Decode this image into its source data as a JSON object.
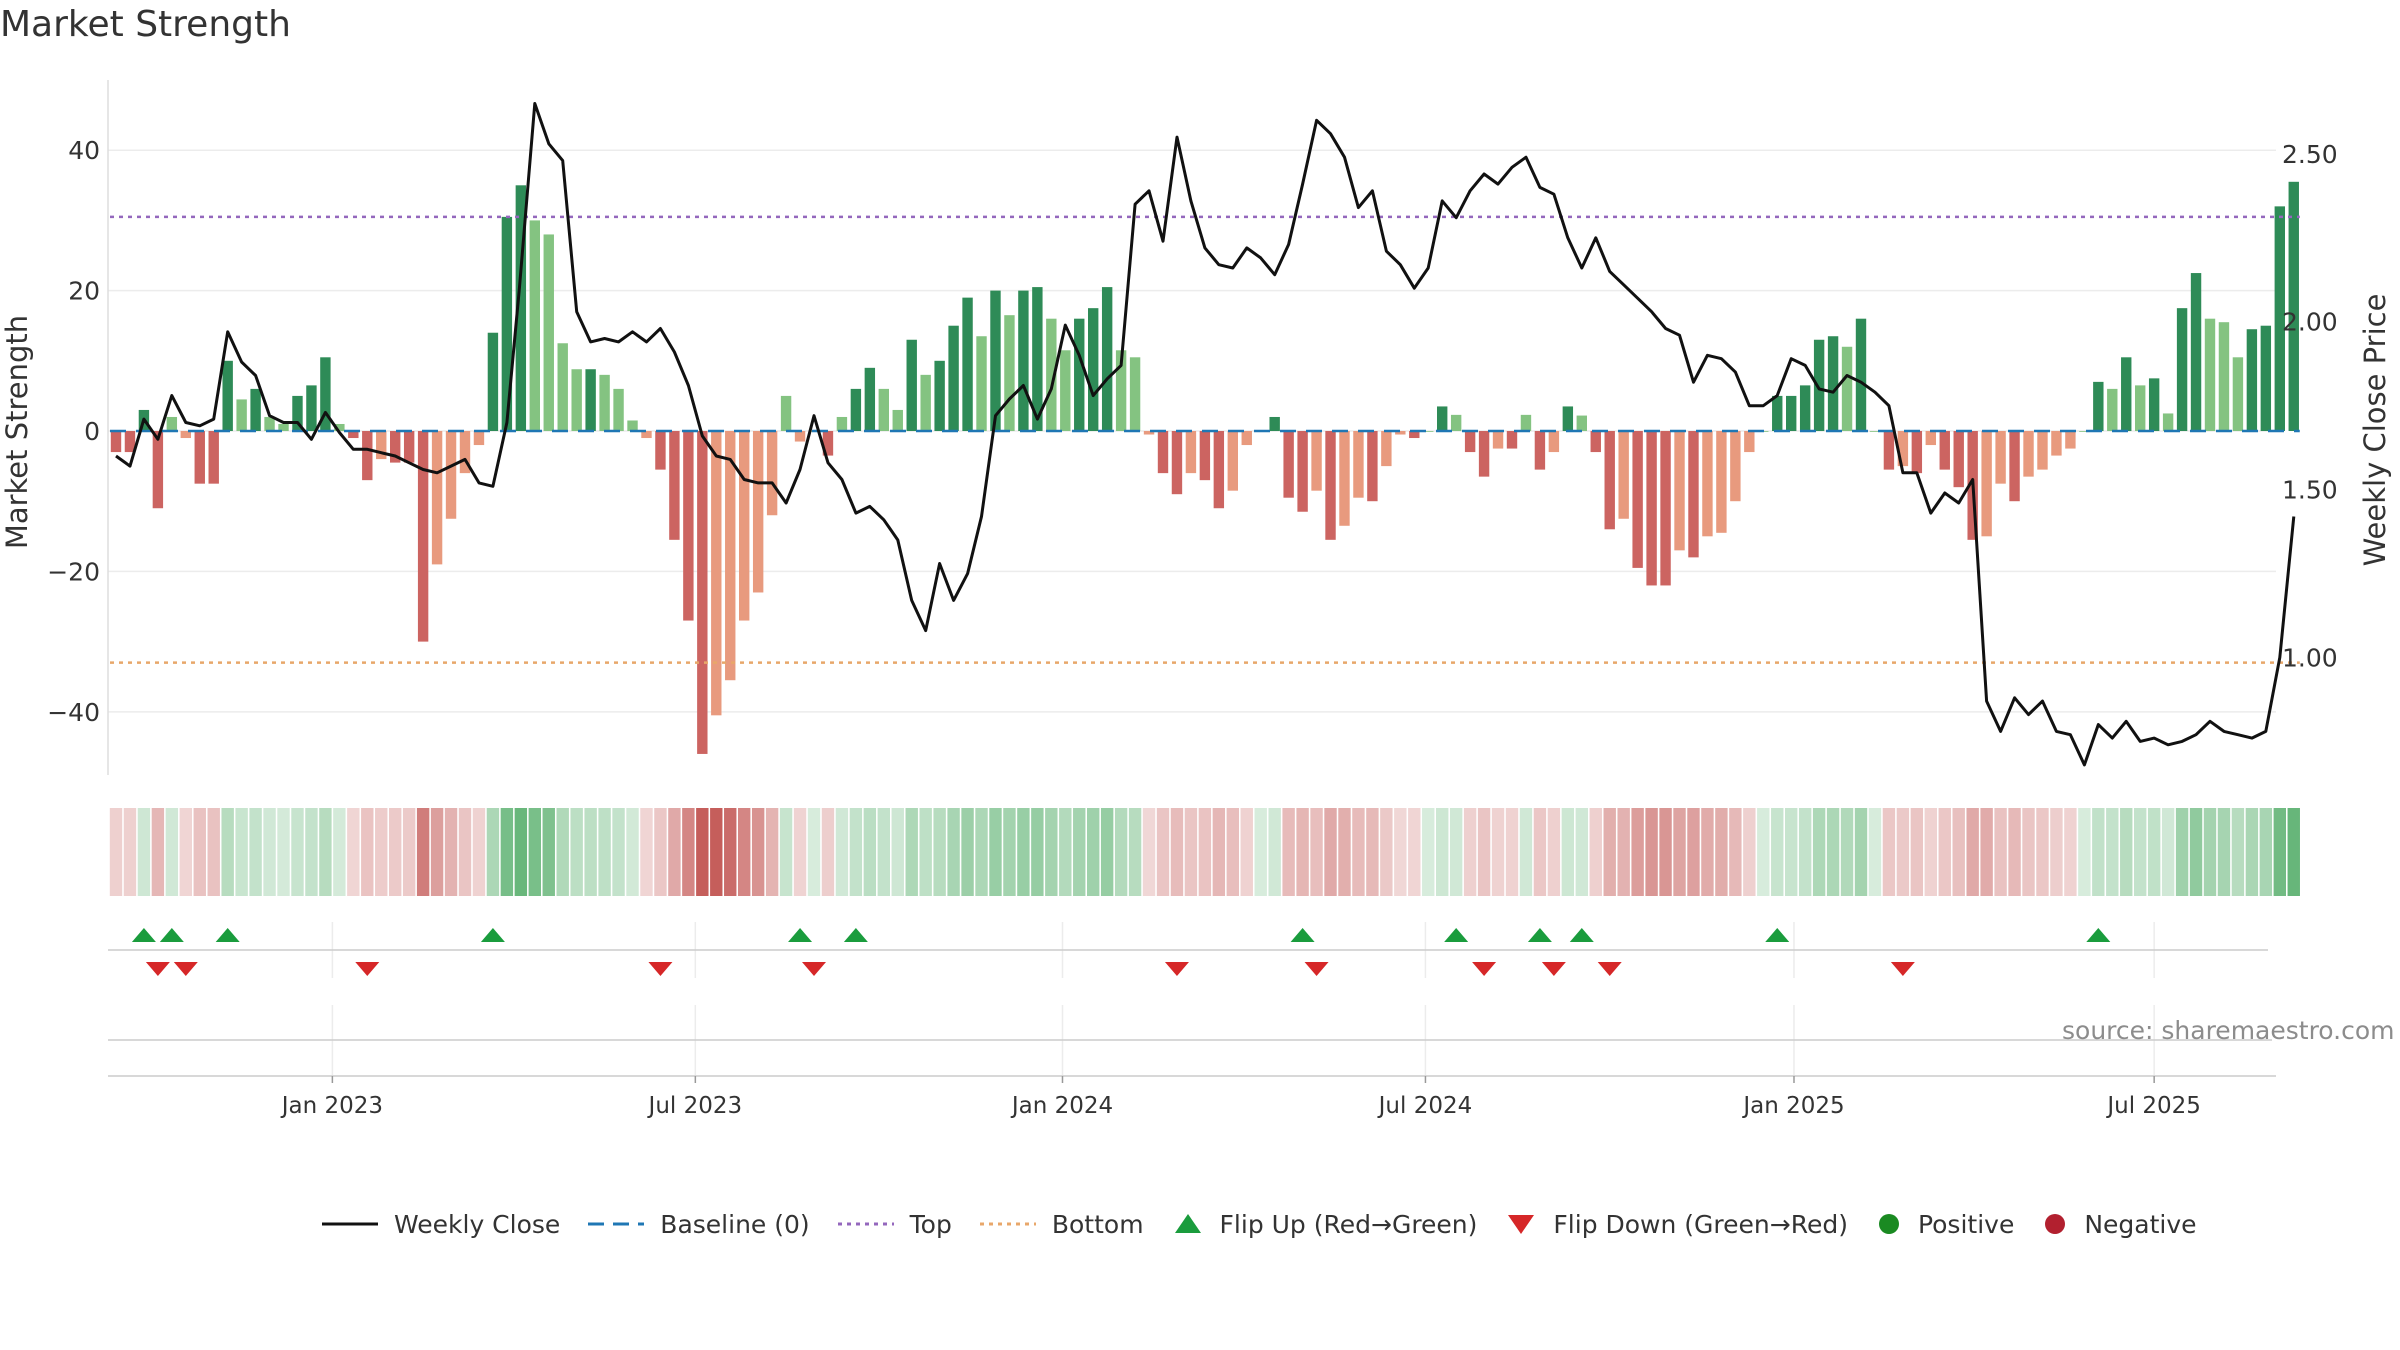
{
  "page": {
    "title": "Market Strength",
    "source": "source: sharemaestro.com"
  },
  "chart_data": {
    "type": "bar",
    "title": "Market Strength",
    "ylabel": "Market Strength",
    "y2label": "Weekly Close Price",
    "ylim": [
      -49,
      50
    ],
    "y2lim": [
      0.65,
      2.72
    ],
    "yticks": [
      {
        "v": 40,
        "t": "40"
      },
      {
        "v": 20,
        "t": "20"
      },
      {
        "v": 0,
        "t": "0"
      },
      {
        "v": -20,
        "t": "−20"
      },
      {
        "v": -40,
        "t": "−40"
      }
    ],
    "y2ticks": [
      {
        "v": 2.5,
        "t": "2.50"
      },
      {
        "v": 2.0,
        "t": "2.00"
      },
      {
        "v": 1.5,
        "t": "1.50"
      },
      {
        "v": 1.0,
        "t": "1.00"
      }
    ],
    "xticks": [
      {
        "w": 15.5,
        "t": "Jan 2023"
      },
      {
        "w": 41.5,
        "t": "Jul 2023"
      },
      {
        "w": 67.8,
        "t": "Jan 2024"
      },
      {
        "w": 93.8,
        "t": "Jul 2024"
      },
      {
        "w": 120.2,
        "t": "Jan 2025"
      },
      {
        "w": 146.0,
        "t": "Jul 2025"
      }
    ],
    "top_threshold": 30.5,
    "bottom_threshold": -33,
    "strength": [
      -3,
      -3,
      3,
      -11,
      2,
      -1,
      -7.5,
      -7.5,
      10,
      4.5,
      6,
      2,
      1,
      5,
      6.5,
      10.5,
      1,
      -1,
      -7,
      -4,
      -4.5,
      -4.5,
      -30,
      -19,
      -12.5,
      -6,
      -2,
      14,
      30.5,
      35,
      30,
      28,
      12.5,
      8.8,
      8.8,
      8,
      6,
      1.5,
      -1,
      -5.5,
      -15.5,
      -27,
      -46,
      -40.5,
      -35.5,
      -27,
      -23,
      -12,
      5,
      -1.5,
      0,
      -3.5,
      2,
      6,
      9,
      6,
      3,
      13,
      8,
      10,
      15,
      19,
      13.5,
      20,
      16.5,
      20,
      20.5,
      16,
      11.5,
      16,
      17.5,
      20.5,
      11.5,
      10.5,
      -0.5,
      -6,
      -9,
      -6,
      -7,
      -11,
      -8.5,
      -2,
      0,
      2,
      -9.5,
      -11.5,
      -8.5,
      -15.5,
      -13.5,
      -9.5,
      -10,
      -5,
      -0.5,
      -1,
      0,
      3.5,
      2.3,
      -3,
      -6.5,
      -2.5,
      -2.5,
      2.3,
      -5.5,
      -3,
      3.5,
      2.2,
      -3,
      -14,
      -12.5,
      -19.5,
      -22,
      -22,
      -17,
      -18,
      -15,
      -14.5,
      -10,
      -3,
      0,
      5,
      5,
      6.5,
      13,
      13.5,
      12,
      16,
      0,
      -5.5,
      -5,
      -6,
      -2,
      -5.5,
      -8,
      -15.5,
      -15,
      -7.5,
      -10,
      -6.5,
      -5.5,
      -3.5,
      -2.5,
      0,
      7,
      6,
      10.5,
      6.5,
      7.5,
      2.5,
      17.5,
      22.5,
      16,
      15.5,
      10.5,
      14.5,
      15,
      32,
      35.5
    ],
    "close_series": [
      {
        "w": 0,
        "v": 1.6
      },
      {
        "w": 1,
        "v": 1.57
      },
      {
        "w": 2,
        "v": 1.71
      },
      {
        "w": 3,
        "v": 1.65
      },
      {
        "w": 4,
        "v": 1.78
      },
      {
        "w": 5,
        "v": 1.7
      },
      {
        "w": 6,
        "v": 1.69
      },
      {
        "w": 7,
        "v": 1.71
      },
      {
        "w": 8,
        "v": 1.97
      },
      {
        "w": 9,
        "v": 1.88
      },
      {
        "w": 10,
        "v": 1.84
      },
      {
        "w": 11,
        "v": 1.72
      },
      {
        "w": 12,
        "v": 1.7
      },
      {
        "w": 13,
        "v": 1.7
      },
      {
        "w": 14,
        "v": 1.65
      },
      {
        "w": 15,
        "v": 1.73
      },
      {
        "w": 16,
        "v": 1.67
      },
      {
        "w": 17,
        "v": 1.62
      },
      {
        "w": 18,
        "v": 1.62
      },
      {
        "w": 19,
        "v": 1.61
      },
      {
        "w": 20,
        "v": 1.6
      },
      {
        "w": 21,
        "v": 1.58
      },
      {
        "w": 22,
        "v": 1.56
      },
      {
        "w": 23,
        "v": 1.55
      },
      {
        "w": 24,
        "v": 1.57
      },
      {
        "w": 25,
        "v": 1.59
      },
      {
        "w": 26,
        "v": 1.52
      },
      {
        "w": 27,
        "v": 1.51
      },
      {
        "w": 28,
        "v": 1.7
      },
      {
        "w": 28.9,
        "v": 2.1
      },
      {
        "w": 30,
        "v": 2.65
      },
      {
        "w": 31,
        "v": 2.53
      },
      {
        "w": 32,
        "v": 2.48
      },
      {
        "w": 33,
        "v": 2.03
      },
      {
        "w": 34,
        "v": 1.94
      },
      {
        "w": 35,
        "v": 1.95
      },
      {
        "w": 36,
        "v": 1.94
      },
      {
        "w": 37,
        "v": 1.97
      },
      {
        "w": 38,
        "v": 1.94
      },
      {
        "w": 39,
        "v": 1.98
      },
      {
        "w": 40,
        "v": 1.91
      },
      {
        "w": 41,
        "v": 1.81
      },
      {
        "w": 42,
        "v": 1.66
      },
      {
        "w": 43,
        "v": 1.6
      },
      {
        "w": 44,
        "v": 1.59
      },
      {
        "w": 45,
        "v": 1.53
      },
      {
        "w": 46,
        "v": 1.52
      },
      {
        "w": 47,
        "v": 1.52
      },
      {
        "w": 48,
        "v": 1.46
      },
      {
        "w": 49,
        "v": 1.56
      },
      {
        "w": 50,
        "v": 1.72
      },
      {
        "w": 51,
        "v": 1.58
      },
      {
        "w": 52,
        "v": 1.53
      },
      {
        "w": 53,
        "v": 1.43
      },
      {
        "w": 54,
        "v": 1.45
      },
      {
        "w": 55,
        "v": 1.41
      },
      {
        "w": 56,
        "v": 1.35
      },
      {
        "w": 57,
        "v": 1.17
      },
      {
        "w": 58,
        "v": 1.08
      },
      {
        "w": 59,
        "v": 1.28
      },
      {
        "w": 60,
        "v": 1.17
      },
      {
        "w": 61,
        "v": 1.25
      },
      {
        "w": 62,
        "v": 1.42
      },
      {
        "w": 63,
        "v": 1.72
      },
      {
        "w": 64,
        "v": 1.77
      },
      {
        "w": 65,
        "v": 1.81
      },
      {
        "w": 66,
        "v": 1.71
      },
      {
        "w": 67,
        "v": 1.8
      },
      {
        "w": 68,
        "v": 1.99
      },
      {
        "w": 69,
        "v": 1.9
      },
      {
        "w": 70,
        "v": 1.78
      },
      {
        "w": 71,
        "v": 1.83
      },
      {
        "w": 72,
        "v": 1.87
      },
      {
        "w": 73,
        "v": 2.35
      },
      {
        "w": 74,
        "v": 2.39
      },
      {
        "w": 75,
        "v": 2.24
      },
      {
        "w": 76,
        "v": 2.55
      },
      {
        "w": 77,
        "v": 2.36
      },
      {
        "w": 78,
        "v": 2.22
      },
      {
        "w": 79,
        "v": 2.17
      },
      {
        "w": 80,
        "v": 2.16
      },
      {
        "w": 81,
        "v": 2.22
      },
      {
        "w": 82,
        "v": 2.19
      },
      {
        "w": 83,
        "v": 2.14
      },
      {
        "w": 84,
        "v": 2.23
      },
      {
        "w": 85,
        "v": 2.41
      },
      {
        "w": 86,
        "v": 2.6
      },
      {
        "w": 87,
        "v": 2.56
      },
      {
        "w": 88,
        "v": 2.49
      },
      {
        "w": 89,
        "v": 2.34
      },
      {
        "w": 90,
        "v": 2.39
      },
      {
        "w": 91,
        "v": 2.21
      },
      {
        "w": 92,
        "v": 2.17
      },
      {
        "w": 93,
        "v": 2.1
      },
      {
        "w": 94,
        "v": 2.16
      },
      {
        "w": 95,
        "v": 2.36
      },
      {
        "w": 96,
        "v": 2.31
      },
      {
        "w": 97,
        "v": 2.39
      },
      {
        "w": 98,
        "v": 2.44
      },
      {
        "w": 99,
        "v": 2.41
      },
      {
        "w": 100,
        "v": 2.46
      },
      {
        "w": 101,
        "v": 2.49
      },
      {
        "w": 102,
        "v": 2.4
      },
      {
        "w": 103,
        "v": 2.38
      },
      {
        "w": 104,
        "v": 2.25
      },
      {
        "w": 105,
        "v": 2.16
      },
      {
        "w": 106,
        "v": 2.25
      },
      {
        "w": 107,
        "v": 2.15
      },
      {
        "w": 108,
        "v": 2.11
      },
      {
        "w": 109,
        "v": 2.07
      },
      {
        "w": 110,
        "v": 2.03
      },
      {
        "w": 111,
        "v": 1.98
      },
      {
        "w": 112,
        "v": 1.96
      },
      {
        "w": 113,
        "v": 1.82
      },
      {
        "w": 114,
        "v": 1.9
      },
      {
        "w": 115,
        "v": 1.89
      },
      {
        "w": 116,
        "v": 1.85
      },
      {
        "w": 117,
        "v": 1.75
      },
      {
        "w": 118,
        "v": 1.75
      },
      {
        "w": 119,
        "v": 1.78
      },
      {
        "w": 120,
        "v": 1.89
      },
      {
        "w": 121,
        "v": 1.87
      },
      {
        "w": 122,
        "v": 1.8
      },
      {
        "w": 123,
        "v": 1.79
      },
      {
        "w": 124,
        "v": 1.84
      },
      {
        "w": 125,
        "v": 1.82
      },
      {
        "w": 126,
        "v": 1.79
      },
      {
        "w": 127,
        "v": 1.75
      },
      {
        "w": 128,
        "v": 1.55
      },
      {
        "w": 129,
        "v": 1.55
      },
      {
        "w": 130,
        "v": 1.43
      },
      {
        "w": 131,
        "v": 1.49
      },
      {
        "w": 132,
        "v": 1.46
      },
      {
        "w": 133,
        "v": 1.53
      },
      {
        "w": 134,
        "v": 0.87
      },
      {
        "w": 135,
        "v": 0.78
      },
      {
        "w": 136,
        "v": 0.88
      },
      {
        "w": 137,
        "v": 0.83
      },
      {
        "w": 138,
        "v": 0.87
      },
      {
        "w": 139,
        "v": 0.78
      },
      {
        "w": 140,
        "v": 0.77
      },
      {
        "w": 141,
        "v": 0.68
      },
      {
        "w": 142,
        "v": 0.8
      },
      {
        "w": 143,
        "v": 0.76
      },
      {
        "w": 144,
        "v": 0.81
      },
      {
        "w": 145,
        "v": 0.75
      },
      {
        "w": 146,
        "v": 0.76
      },
      {
        "w": 147,
        "v": 0.74
      },
      {
        "w": 148,
        "v": 0.75
      },
      {
        "w": 149,
        "v": 0.77
      },
      {
        "w": 150,
        "v": 0.81
      },
      {
        "w": 151,
        "v": 0.78
      },
      {
        "w": 152,
        "v": 0.77
      },
      {
        "w": 153,
        "v": 0.76
      },
      {
        "w": 154,
        "v": 0.78
      },
      {
        "w": 155,
        "v": 1.0
      },
      {
        "w": 156,
        "v": 1.42
      }
    ],
    "flip_up_weeks": [
      2,
      4,
      8,
      27,
      49,
      53,
      85,
      96,
      102,
      105,
      119,
      142
    ],
    "flip_down_weeks": [
      3,
      5,
      18,
      39,
      50,
      76,
      86,
      98,
      103,
      107,
      128
    ],
    "legend": [
      {
        "key": "close",
        "label": "Weekly Close",
        "color": "#111111"
      },
      {
        "key": "baseline",
        "label": "Baseline (0)",
        "color": "#1f77b4"
      },
      {
        "key": "top",
        "label": "Top",
        "color": "#9467bd"
      },
      {
        "key": "bottom",
        "label": "Bottom",
        "color": "#e8a76a"
      },
      {
        "key": "flip_up",
        "label": "Flip Up (Red→Green)",
        "color": "#1a9c3d"
      },
      {
        "key": "flip_down",
        "label": "Flip Down (Green→Red)",
        "color": "#d62728"
      },
      {
        "key": "positive",
        "label": "Positive",
        "color": "#1a8a22"
      },
      {
        "key": "negative",
        "label": "Negative",
        "color": "#b2202f"
      }
    ],
    "colors": {
      "pos_strong": "#2e8b57",
      "pos_weak": "#84c381",
      "neg_strong": "#cc6461",
      "neg_weak": "#e89a7e",
      "heat_pos": "#4aa860",
      "heat_neg": "#c0504d",
      "grid": "#ececec"
    }
  }
}
